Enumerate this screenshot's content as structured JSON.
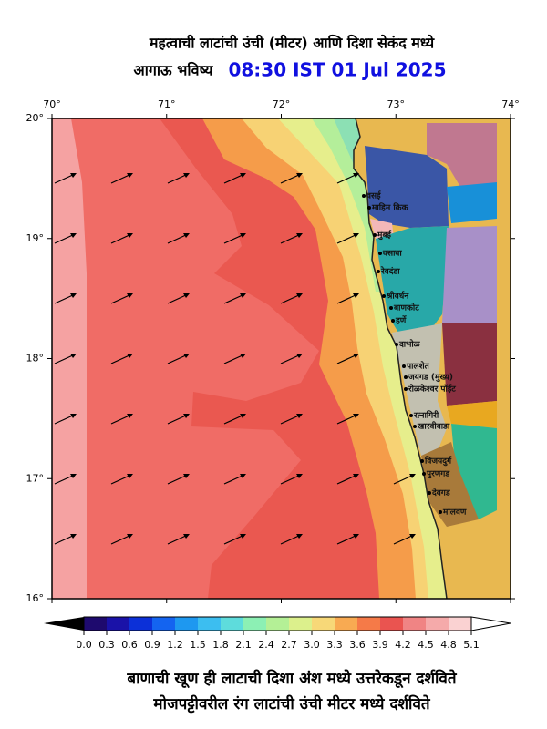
{
  "header": {
    "title_line1": "महत्वाची लाटांची उंची (मीटर) आणि दिशा सेकंद मध्ये",
    "title_line2": "आगाऊ भविष्य",
    "forecast_time": "08:30 IST 01 Jul 2025"
  },
  "map": {
    "xlim": [
      70,
      74
    ],
    "ylim": [
      16,
      20
    ],
    "xticks": [
      {
        "value": 70,
        "label": "70°"
      },
      {
        "value": 71,
        "label": "71°"
      },
      {
        "value": 72,
        "label": "72°"
      },
      {
        "value": 73,
        "label": "73°"
      },
      {
        "value": 74,
        "label": "74°"
      }
    ],
    "yticks": [
      {
        "value": 20,
        "label": "20°"
      },
      {
        "value": 19,
        "label": "19°"
      },
      {
        "value": 18,
        "label": "18°"
      },
      {
        "value": 17,
        "label": "17°"
      },
      {
        "value": 16,
        "label": "16°"
      }
    ],
    "places": [
      "वसई",
      "माहिम क्रिक",
      "मुंबई",
      "वसावा",
      "रेवदंडा",
      "श्रीवर्धन",
      "बाणकोट",
      "हर्णे",
      "दाभोळ",
      "पालशेत",
      "जयगड (मुख्य)",
      "रोळकेश्वर पॉईंट",
      "रत्नागिरी",
      "खारवीवाडा",
      "विजयदुर्ग",
      "पुरणगड",
      "देवगड",
      "मालवण"
    ]
  },
  "colorbar": {
    "ticks": [
      {
        "value": 0,
        "label": "0.0"
      },
      0.3,
      0.6,
      0.9,
      1.2,
      1.5,
      1.8,
      2.1,
      2.4,
      2.7,
      {
        "value": 3,
        "label": "3.0"
      },
      3.3,
      3.6,
      3.9,
      4.2,
      4.5,
      4.8,
      5.1
    ],
    "colors": [
      "#1e0a6e",
      "#1a12a8",
      "#0c30d8",
      "#1464f0",
      "#1e98f0",
      "#3cbef0",
      "#5edcdc",
      "#8cf0b4",
      "#b4f096",
      "#dcf08c",
      "#f7d878",
      "#f8aa52",
      "#f57a48",
      "#ea5450",
      "#f08484",
      "#f5aaaa",
      "#fad2d2"
    ]
  },
  "footer": {
    "line1": "बाणाची खूण ही लाटाची दिशा अंश मध्ये उत्तरेकडून दर्शविते",
    "line2": "मोजपट्टीवरील रंग लाटांची उंची मीटर मध्ये दर्शविते"
  }
}
